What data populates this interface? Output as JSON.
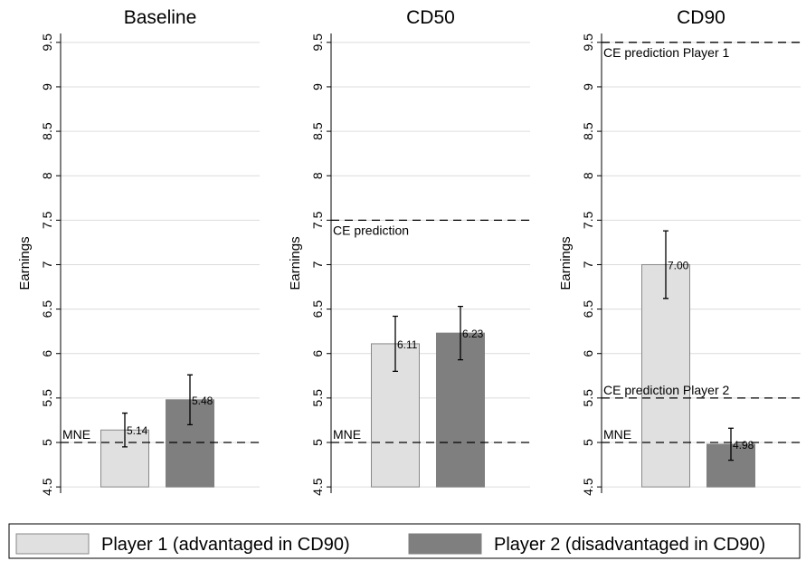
{
  "legend": [
    {
      "name": "Player 1 (advantaged in CD90)",
      "color": "#e0e0e0"
    },
    {
      "name": "Player 2 (disadvantaged in CD90)",
      "color": "#7f7f7f"
    }
  ],
  "chart_data": [
    {
      "type": "bar",
      "title": "Baseline",
      "ylabel": "Earnings",
      "ylim": [
        4.43,
        9.6
      ],
      "yticks": [
        4.5,
        5,
        5.5,
        6,
        6.5,
        7,
        7.5,
        8,
        8.5,
        9,
        9.5
      ],
      "grid": true,
      "base": 4.5,
      "series": [
        {
          "values": [
            5.14
          ],
          "errors": [
            0.19
          ],
          "value_labels": [
            "5.14"
          ]
        },
        {
          "values": [
            5.48
          ],
          "errors": [
            0.28
          ],
          "value_labels": [
            "5.48"
          ]
        }
      ],
      "reference_lines": [
        {
          "value": 5,
          "label": "MNE",
          "label_side": "above"
        }
      ]
    },
    {
      "type": "bar",
      "title": "CD50",
      "ylabel": "Earnings",
      "ylim": [
        4.43,
        9.6
      ],
      "yticks": [
        4.5,
        5,
        5.5,
        6,
        6.5,
        7,
        7.5,
        8,
        8.5,
        9,
        9.5
      ],
      "grid": true,
      "base": 4.5,
      "series": [
        {
          "values": [
            6.11
          ],
          "errors": [
            0.31
          ],
          "value_labels": [
            "6.11"
          ]
        },
        {
          "values": [
            6.23
          ],
          "errors": [
            0.3
          ],
          "value_labels": [
            "6.23"
          ]
        }
      ],
      "reference_lines": [
        {
          "value": 5,
          "label": "MNE",
          "label_side": "above"
        },
        {
          "value": 7.5,
          "label": "CE prediction",
          "label_side": "below"
        }
      ]
    },
    {
      "type": "bar",
      "title": "CD90",
      "ylabel": "Earnings",
      "ylim": [
        4.43,
        9.6
      ],
      "yticks": [
        4.5,
        5,
        5.5,
        6,
        6.5,
        7,
        7.5,
        8,
        8.5,
        9,
        9.5
      ],
      "grid": true,
      "base": 4.5,
      "series": [
        {
          "values": [
            7.0
          ],
          "errors": [
            0.38
          ],
          "value_labels": [
            "7.00"
          ]
        },
        {
          "values": [
            4.98
          ],
          "errors": [
            0.18
          ],
          "value_labels": [
            "4.98"
          ]
        }
      ],
      "reference_lines": [
        {
          "value": 5,
          "label": "MNE",
          "label_side": "above"
        },
        {
          "value": 5.5,
          "label": "CE prediction Player 2",
          "label_side": "above"
        },
        {
          "value": 9.5,
          "label": "CE prediction Player 1",
          "label_side": "below"
        }
      ]
    }
  ]
}
